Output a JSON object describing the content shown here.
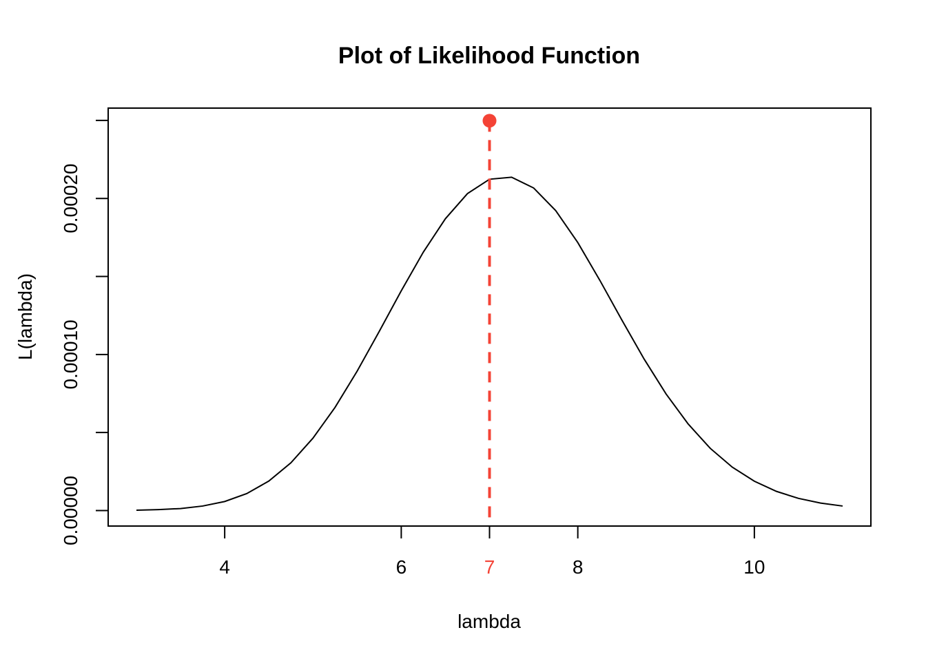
{
  "chart_data": {
    "type": "line",
    "title": "Plot of Likelihood Function",
    "xlabel": "lambda",
    "ylabel": "L(lambda)",
    "xlim": [
      2.68,
      11.32
    ],
    "ylim": [
      -9.92e-06,
      0.00025788
    ],
    "x_ticks": [
      4,
      6,
      8,
      10
    ],
    "x_tick_labels": [
      "4",
      "6",
      "8",
      "10"
    ],
    "y_ticks": [
      0,
      5e-05,
      0.0001,
      0.00015,
      0.0002,
      0.00025
    ],
    "y_tick_labels": [
      "0.00000",
      "",
      "0.00010",
      "",
      "0.00020",
      ""
    ],
    "grid": false,
    "legend": "none",
    "series": [
      {
        "color": "#000000",
        "x": [
          3,
          3.25,
          3.5,
          3.75,
          4,
          4.25,
          4.5,
          4.75,
          5,
          5.25,
          5.5,
          5.75,
          6,
          6.25,
          6.5,
          6.75,
          7,
          7.25,
          7.5,
          7.75,
          8,
          8.25,
          8.5,
          8.75,
          9,
          9.25,
          9.5,
          9.75,
          10,
          10.25,
          10.5,
          10.75,
          11
        ],
        "values": [
          2e-07,
          6e-07,
          1.3e-06,
          2.9e-06,
          5.8e-06,
          1.09e-05,
          1.89e-05,
          3.06e-05,
          4.64e-05,
          6.61e-05,
          8.93e-05,
          0.0001147,
          0.0001408,
          0.0001656,
          0.000187,
          0.0002031,
          0.0002123,
          0.0002136,
          0.0002067,
          0.0001922,
          0.0001717,
          0.0001475,
          0.000122,
          9.72e-05,
          7.47e-05,
          5.55e-05,
          3.99e-05,
          2.78e-05,
          1.88e-05,
          1.23e-05,
          7.8e-06,
          4.8e-06,
          2.9e-06
        ]
      }
    ],
    "mle": {
      "x": 7,
      "x_label": "7",
      "y": 0.0002498,
      "color": "#f44336"
    }
  }
}
